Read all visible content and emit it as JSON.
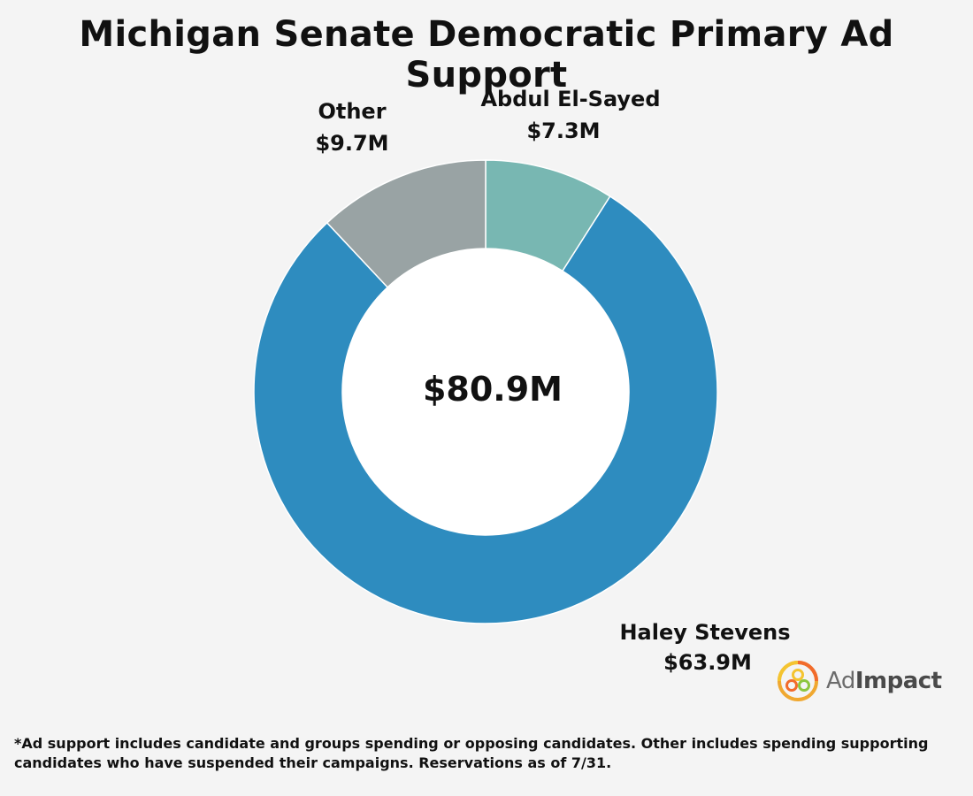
{
  "chart_data": {
    "type": "pie",
    "title": "Michigan Senate Democratic Primary Ad Support",
    "total_label": "$80.9M",
    "total": 80.9,
    "unit": "$M",
    "slices": [
      {
        "name": "Abdul El-Sayed",
        "value": 7.3,
        "value_label": "$7.3M",
        "color": "#78b7b2"
      },
      {
        "name": "Haley Stevens",
        "value": 63.9,
        "value_label": "$63.9M",
        "color": "#2e8cbf"
      },
      {
        "name": "Other",
        "value": 9.7,
        "value_label": "$9.7M",
        "color": "#99a3a4"
      }
    ]
  },
  "logo": {
    "text_light": "Ad",
    "text_bold": "Impact"
  },
  "footnote": "*Ad support includes candidate and groups spending or opposing candidates. Other includes spending supporting candidates who have suspended their campaigns. Reservations as of 7/31."
}
